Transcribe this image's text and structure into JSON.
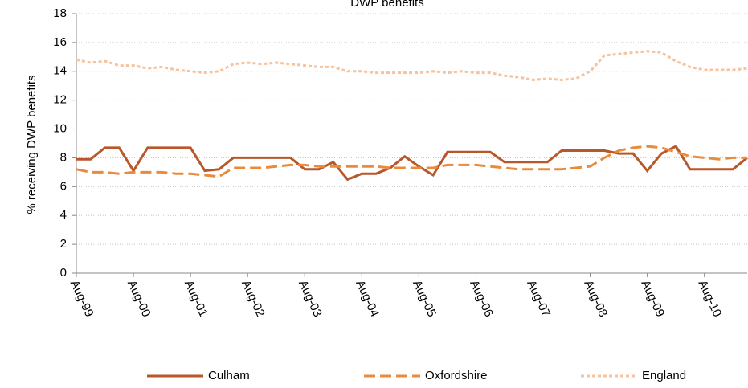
{
  "chart_data": {
    "type": "line",
    "title": "DWP benefits",
    "y_label": "% receiving DWP benefits",
    "categories": [
      "Aug-99",
      null,
      null,
      null,
      "Aug-00",
      null,
      null,
      null,
      "Aug-01",
      null,
      null,
      null,
      "Aug-02",
      null,
      null,
      null,
      "Aug-03",
      null,
      null,
      null,
      "Aug-04",
      null,
      null,
      null,
      "Aug-05",
      null,
      null,
      null,
      "Aug-06",
      null,
      null,
      null,
      "Aug-07",
      null,
      null,
      null,
      "Aug-08",
      null,
      null,
      null,
      "Aug-09",
      null,
      null,
      null,
      "Aug-10",
      null,
      null,
      null
    ],
    "series": [
      {
        "name": "Culham",
        "color": "#b8572a",
        "dash": "solid",
        "values": [
          7.9,
          7.9,
          8.7,
          8.7,
          7.1,
          8.7,
          8.7,
          8.7,
          8.7,
          7.1,
          7.2,
          8.0,
          8.0,
          8.0,
          8.0,
          8.0,
          7.2,
          7.2,
          7.7,
          6.5,
          6.9,
          6.9,
          7.3,
          8.1,
          7.4,
          6.8,
          8.4,
          8.4,
          8.4,
          8.4,
          7.7,
          7.7,
          7.7,
          7.7,
          8.5,
          8.5,
          8.5,
          8.5,
          8.3,
          8.3,
          7.1,
          8.3,
          8.8,
          7.2,
          7.2,
          7.2,
          7.2,
          8.0
        ]
      },
      {
        "name": "Oxfordshire",
        "color": "#ea8b3c",
        "dash": "dashed",
        "values": [
          7.2,
          7.0,
          7.0,
          6.9,
          7.0,
          7.0,
          7.0,
          6.9,
          6.9,
          6.8,
          6.7,
          7.3,
          7.3,
          7.3,
          7.4,
          7.5,
          7.5,
          7.4,
          7.4,
          7.4,
          7.4,
          7.4,
          7.3,
          7.3,
          7.3,
          7.3,
          7.5,
          7.5,
          7.5,
          7.4,
          7.3,
          7.2,
          7.2,
          7.2,
          7.2,
          7.3,
          7.4,
          8.0,
          8.5,
          8.7,
          8.8,
          8.7,
          8.4,
          8.1,
          8.0,
          7.9,
          8.0,
          8.0
        ]
      },
      {
        "name": "England",
        "color": "#f7c29c",
        "dash": "dotted",
        "values": [
          14.8,
          14.6,
          14.7,
          14.4,
          14.4,
          14.2,
          14.3,
          14.1,
          14.0,
          13.9,
          14.0,
          14.5,
          14.6,
          14.5,
          14.6,
          14.5,
          14.4,
          14.3,
          14.3,
          14.0,
          14.0,
          13.9,
          13.9,
          13.9,
          13.9,
          14.0,
          13.9,
          14.0,
          13.9,
          13.9,
          13.7,
          13.6,
          13.4,
          13.5,
          13.4,
          13.5,
          14.0,
          15.1,
          15.2,
          15.3,
          15.4,
          15.3,
          14.7,
          14.3,
          14.1,
          14.1,
          14.1,
          14.2
        ]
      }
    ],
    "ylim": [
      0,
      18
    ],
    "yticks": [
      0,
      2,
      4,
      6,
      8,
      10,
      12,
      14,
      16,
      18
    ],
    "grid": true,
    "legend": "bottom"
  }
}
